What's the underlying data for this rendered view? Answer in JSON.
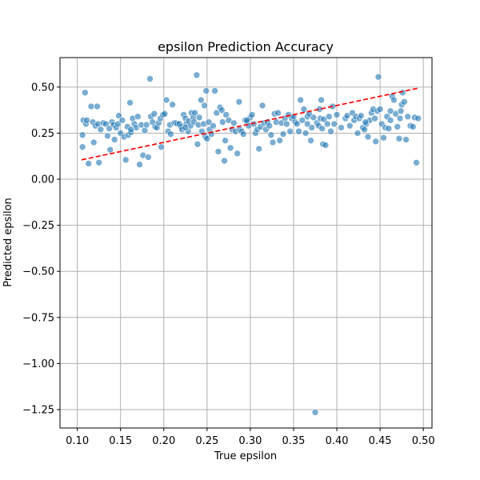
{
  "chart_data": {
    "type": "scatter",
    "title": "epsilon Prediction Accuracy",
    "xlabel": "True epsilon",
    "ylabel": "Predicted epsilon",
    "xlim": [
      0.08,
      0.51
    ],
    "ylim": [
      -1.35,
      0.66
    ],
    "grid": true,
    "x_ticks": [
      "0.10",
      "0.15",
      "0.20",
      "0.25",
      "0.30",
      "0.35",
      "0.40",
      "0.45",
      "0.50"
    ],
    "x_tick_values": [
      0.1,
      0.15,
      0.2,
      0.25,
      0.3,
      0.35,
      0.4,
      0.45,
      0.5
    ],
    "y_ticks": [
      "0.50",
      "0.25",
      "0.00",
      "−0.25",
      "−0.50",
      "−0.75",
      "−1.00",
      "−1.25"
    ],
    "y_tick_values": [
      0.5,
      0.25,
      0.0,
      -0.25,
      -0.5,
      -0.75,
      -1.0,
      -1.25
    ],
    "colors": {
      "points": "#1f77b4",
      "reference_line": "#ff0000",
      "grid": "#b0b0b0"
    },
    "reference_line": {
      "style": "dashed",
      "x": [
        0.105,
        0.495
      ],
      "y": [
        0.105,
        0.495
      ]
    },
    "points": [
      [
        0.106,
        0.175
      ],
      [
        0.106,
        0.24
      ],
      [
        0.107,
        0.32
      ],
      [
        0.109,
        0.47
      ],
      [
        0.11,
        0.3
      ],
      [
        0.111,
        0.32
      ],
      [
        0.113,
        0.085
      ],
      [
        0.116,
        0.395
      ],
      [
        0.118,
        0.31
      ],
      [
        0.119,
        0.2
      ],
      [
        0.121,
        0.29
      ],
      [
        0.123,
        0.395
      ],
      [
        0.124,
        0.3
      ],
      [
        0.125,
        0.09
      ],
      [
        0.127,
        0.27
      ],
      [
        0.13,
        0.305
      ],
      [
        0.133,
        0.3
      ],
      [
        0.135,
        0.235
      ],
      [
        0.137,
        0.275
      ],
      [
        0.138,
        0.16
      ],
      [
        0.14,
        0.31
      ],
      [
        0.142,
        0.295
      ],
      [
        0.143,
        0.215
      ],
      [
        0.145,
        0.28
      ],
      [
        0.147,
        0.3
      ],
      [
        0.148,
        0.345
      ],
      [
        0.15,
        0.25
      ],
      [
        0.152,
        0.32
      ],
      [
        0.154,
        0.23
      ],
      [
        0.156,
        0.105
      ],
      [
        0.158,
        0.285
      ],
      [
        0.159,
        0.24
      ],
      [
        0.161,
        0.415
      ],
      [
        0.162,
        0.255
      ],
      [
        0.164,
        0.33
      ],
      [
        0.166,
        0.3
      ],
      [
        0.168,
        0.28
      ],
      [
        0.17,
        0.34
      ],
      [
        0.172,
        0.08
      ],
      [
        0.174,
        0.295
      ],
      [
        0.176,
        0.13
      ],
      [
        0.178,
        0.265
      ],
      [
        0.18,
        0.295
      ],
      [
        0.182,
        0.12
      ],
      [
        0.184,
        0.545
      ],
      [
        0.185,
        0.34
      ],
      [
        0.187,
        0.31
      ],
      [
        0.189,
        0.355
      ],
      [
        0.19,
        0.285
      ],
      [
        0.192,
        0.28
      ],
      [
        0.194,
        0.305
      ],
      [
        0.196,
        0.33
      ],
      [
        0.197,
        0.175
      ],
      [
        0.199,
        0.35
      ],
      [
        0.201,
        0.355
      ],
      [
        0.203,
        0.43
      ],
      [
        0.205,
        0.26
      ],
      [
        0.207,
        0.295
      ],
      [
        0.208,
        0.245
      ],
      [
        0.21,
        0.405
      ],
      [
        0.212,
        0.305
      ],
      [
        0.214,
        0.305
      ],
      [
        0.216,
        0.3
      ],
      [
        0.218,
        0.3
      ],
      [
        0.22,
        0.285
      ],
      [
        0.221,
        0.27
      ],
      [
        0.223,
        0.35
      ],
      [
        0.225,
        0.33
      ],
      [
        0.226,
        0.3
      ],
      [
        0.228,
        0.26
      ],
      [
        0.229,
        0.315
      ],
      [
        0.231,
        0.29
      ],
      [
        0.232,
        0.36
      ],
      [
        0.234,
        0.335
      ],
      [
        0.235,
        0.31
      ],
      [
        0.236,
        0.36
      ],
      [
        0.238,
        0.565
      ],
      [
        0.239,
        0.19
      ],
      [
        0.24,
        0.295
      ],
      [
        0.241,
        0.335
      ],
      [
        0.243,
        0.43
      ],
      [
        0.244,
        0.26
      ],
      [
        0.246,
        0.3
      ],
      [
        0.247,
        0.4
      ],
      [
        0.248,
        0.23
      ],
      [
        0.249,
        0.48
      ],
      [
        0.25,
        0.22
      ],
      [
        0.252,
        0.31
      ],
      [
        0.253,
        0.27
      ],
      [
        0.255,
        0.245
      ],
      [
        0.257,
        0.29
      ],
      [
        0.259,
        0.48
      ],
      [
        0.261,
        0.36
      ],
      [
        0.263,
        0.15
      ],
      [
        0.265,
        0.39
      ],
      [
        0.267,
        0.375
      ],
      [
        0.268,
        0.31
      ],
      [
        0.27,
        0.1
      ],
      [
        0.271,
        0.21
      ],
      [
        0.272,
        0.35
      ],
      [
        0.275,
        0.32
      ],
      [
        0.277,
        0.17
      ],
      [
        0.279,
        0.27
      ],
      [
        0.281,
        0.305
      ],
      [
        0.283,
        0.26
      ],
      [
        0.285,
        0.14
      ],
      [
        0.287,
        0.42
      ],
      [
        0.288,
        0.27
      ],
      [
        0.29,
        0.26
      ],
      [
        0.292,
        0.245
      ],
      [
        0.294,
        0.32
      ],
      [
        0.296,
        0.31
      ],
      [
        0.298,
        0.29
      ],
      [
        0.3,
        0.335
      ],
      [
        0.302,
        0.35
      ],
      [
        0.304,
        0.3
      ],
      [
        0.306,
        0.25
      ],
      [
        0.308,
        0.27
      ],
      [
        0.31,
        0.165
      ],
      [
        0.312,
        0.285
      ],
      [
        0.314,
        0.4
      ],
      [
        0.316,
        0.305
      ],
      [
        0.318,
        0.27
      ],
      [
        0.32,
        0.31
      ],
      [
        0.322,
        0.29
      ],
      [
        0.324,
        0.24
      ],
      [
        0.326,
        0.2
      ],
      [
        0.328,
        0.355
      ],
      [
        0.33,
        0.31
      ],
      [
        0.332,
        0.36
      ],
      [
        0.334,
        0.21
      ],
      [
        0.336,
        0.305
      ],
      [
        0.338,
        0.245
      ],
      [
        0.34,
        0.33
      ],
      [
        0.342,
        0.3
      ],
      [
        0.344,
        0.35
      ],
      [
        0.346,
        0.26
      ],
      [
        0.348,
        0.33
      ],
      [
        0.35,
        0.34
      ],
      [
        0.352,
        0.31
      ],
      [
        0.354,
        0.3
      ],
      [
        0.356,
        0.26
      ],
      [
        0.358,
        0.43
      ],
      [
        0.36,
        0.32
      ],
      [
        0.362,
        0.38
      ],
      [
        0.364,
        0.25
      ],
      [
        0.366,
        0.34
      ],
      [
        0.368,
        0.355
      ],
      [
        0.37,
        0.21
      ],
      [
        0.371,
        0.28
      ],
      [
        0.373,
        0.335
      ],
      [
        0.375,
        -1.265
      ],
      [
        0.377,
        0.305
      ],
      [
        0.379,
        0.29
      ],
      [
        0.38,
        0.38
      ],
      [
        0.381,
        0.33
      ],
      [
        0.382,
        0.43
      ],
      [
        0.383,
        0.275
      ],
      [
        0.384,
        0.19
      ],
      [
        0.385,
        0.325
      ],
      [
        0.387,
        0.185
      ],
      [
        0.389,
        0.3
      ],
      [
        0.391,
        0.34
      ],
      [
        0.393,
        0.26
      ],
      [
        0.395,
        0.395
      ],
      [
        0.397,
        0.3
      ],
      [
        0.4,
        0.35
      ],
      [
        0.405,
        0.28
      ],
      [
        0.41,
        0.33
      ],
      [
        0.412,
        0.345
      ],
      [
        0.415,
        0.29
      ],
      [
        0.418,
        0.36
      ],
      [
        0.42,
        0.32
      ],
      [
        0.422,
        0.34
      ],
      [
        0.424,
        0.25
      ],
      [
        0.426,
        0.33
      ],
      [
        0.428,
        0.345
      ],
      [
        0.43,
        0.28
      ],
      [
        0.432,
        0.27
      ],
      [
        0.434,
        0.3
      ],
      [
        0.436,
        0.23
      ],
      [
        0.438,
        0.32
      ],
      [
        0.44,
        0.36
      ],
      [
        0.442,
        0.38
      ],
      [
        0.444,
        0.33
      ],
      [
        0.445,
        0.205
      ],
      [
        0.447,
        0.37
      ],
      [
        0.448,
        0.555
      ],
      [
        0.45,
        0.38
      ],
      [
        0.452,
        0.3
      ],
      [
        0.454,
        0.225
      ],
      [
        0.456,
        0.28
      ],
      [
        0.458,
        0.34
      ],
      [
        0.46,
        0.275
      ],
      [
        0.462,
        0.32
      ],
      [
        0.464,
        0.45
      ],
      [
        0.466,
        0.43
      ],
      [
        0.468,
        0.355
      ],
      [
        0.47,
        0.285
      ],
      [
        0.472,
        0.22
      ],
      [
        0.473,
        0.33
      ],
      [
        0.474,
        0.37
      ],
      [
        0.475,
        0.405
      ],
      [
        0.476,
        0.47
      ],
      [
        0.478,
        0.42
      ],
      [
        0.48,
        0.215
      ],
      [
        0.482,
        0.34
      ],
      [
        0.485,
        0.29
      ],
      [
        0.488,
        0.285
      ],
      [
        0.49,
        0.335
      ],
      [
        0.492,
        0.09
      ],
      [
        0.494,
        0.33
      ],
      [
        0.462,
        0.37
      ],
      [
        0.433,
        0.31
      ],
      [
        0.366,
        0.3
      ],
      [
        0.296,
        0.32
      ],
      [
        0.225,
        0.28
      ],
      [
        0.162,
        0.27
      ]
    ]
  }
}
